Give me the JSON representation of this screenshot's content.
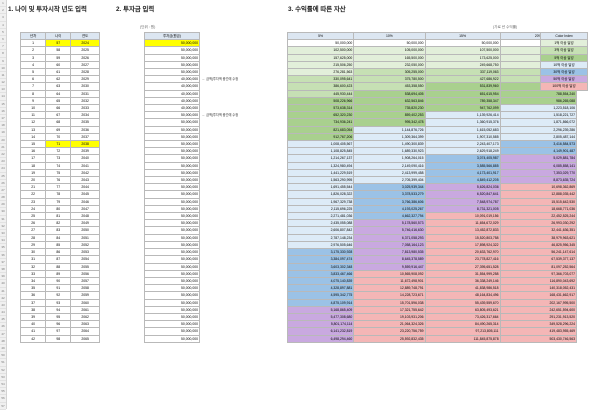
{
  "titles": {
    "t1": "1. 나이 및 투자시작 년도 입력",
    "t2": "2. 투자금 입력",
    "t3": "3. 수익률에 따른 자산",
    "unit": "(단위 : 원)",
    "rate_note": "(가로 년 수익률)"
  },
  "table1": {
    "headers": [
      "년차",
      "나이",
      "연도"
    ],
    "rows": [
      [
        1,
        57,
        2024
      ],
      [
        2,
        58,
        2025
      ],
      [
        3,
        59,
        2026
      ],
      [
        4,
        60,
        2027
      ],
      [
        5,
        61,
        2028
      ],
      [
        6,
        62,
        2029
      ],
      [
        7,
        63,
        2030
      ],
      [
        8,
        64,
        2031
      ],
      [
        9,
        65,
        2032
      ],
      [
        10,
        66,
        2033
      ],
      [
        11,
        67,
        2034
      ],
      [
        12,
        68,
        2035
      ],
      [
        13,
        69,
        2036
      ],
      [
        14,
        70,
        2037
      ],
      [
        15,
        71,
        2038
      ],
      [
        16,
        72,
        2039
      ],
      [
        17,
        73,
        2040
      ],
      [
        18,
        74,
        2041
      ],
      [
        19,
        75,
        2042
      ],
      [
        20,
        76,
        2043
      ],
      [
        21,
        77,
        2044
      ],
      [
        22,
        78,
        2045
      ],
      [
        23,
        79,
        2046
      ],
      [
        24,
        80,
        2047
      ],
      [
        25,
        81,
        2048
      ],
      [
        26,
        82,
        2049
      ],
      [
        27,
        83,
        2050
      ],
      [
        28,
        84,
        2051
      ],
      [
        29,
        85,
        2052
      ],
      [
        30,
        86,
        2053
      ],
      [
        31,
        87,
        2054
      ],
      [
        32,
        88,
        2055
      ],
      [
        33,
        89,
        2056
      ],
      [
        34,
        90,
        2057
      ],
      [
        35,
        91,
        2058
      ],
      [
        36,
        92,
        2059
      ],
      [
        37,
        93,
        2060
      ],
      [
        38,
        94,
        2061
      ],
      [
        39,
        95,
        2062
      ],
      [
        40,
        96,
        2063
      ],
      [
        41,
        97,
        2064
      ],
      [
        42,
        98,
        2065
      ]
    ]
  },
  "table2": {
    "header": "투자금(원금)",
    "rows": [
      "50,000,000",
      "50,000,000",
      "50,000,000",
      "50,000,000",
      "50,000,000",
      "40,000,000",
      "40,000,000",
      "40,000,000",
      "40,000,000",
      "40,000,000",
      "50,000,000",
      "50,000,000",
      "50,000,000",
      "50,000,000",
      "50,000,000",
      "50,000,000",
      "50,000,000",
      "50,000,000",
      "50,000,000",
      "50,000,000",
      "50,000,000",
      "50,000,000",
      "50,000,000",
      "50,000,000",
      "50,000,000",
      "50,000,000",
      "50,000,000",
      "50,000,000",
      "50,000,000",
      "50,000,000",
      "50,000,000",
      "50,000,000",
      "50,000,000",
      "50,000,000",
      "50,000,000",
      "50,000,000",
      "50,000,000",
      "50,000,000",
      "50,000,000",
      "50,000,000",
      "50,000,000",
      "50,000,000"
    ],
    "notes": [
      {
        "row": 5,
        "text": "← 금액(투자액 중간에 수정"
      },
      {
        "row": 10,
        "text": "← 금액(투자액 중간에 수정"
      }
    ]
  },
  "table3": {
    "headers": [
      "5%",
      "10%",
      "15%",
      "20%"
    ],
    "rows": [
      [
        "50,000,000",
        "50,000,000",
        "50,000,000",
        "50,000,000"
      ],
      [
        "102,500,000",
        "105,000,000",
        "107,500,000",
        "110,000,000"
      ],
      [
        "157,625,000",
        "165,500,000",
        "173,625,000",
        "182,000,000"
      ],
      [
        "215,506,250",
        "232,050,000",
        "249,668,750",
        "268,400,000"
      ],
      [
        "276,281,563",
        "305,255,000",
        "337,119,063",
        "372,080,000"
      ],
      [
        "330,095,641",
        "375,780,500",
        "427,686,922",
        "486,496,000"
      ],
      [
        "386,600,423",
        "453,358,550",
        "531,839,960",
        "623,795,200"
      ],
      [
        "445,930,444",
        "538,694,405",
        "651,615,954",
        "788,554,240"
      ],
      [
        "508,226,966",
        "632,563,846",
        "789,358,347",
        "986,265,088"
      ],
      [
        "573,638,314",
        "735,820,230",
        "947,762,099",
        "1,223,518,106"
      ],
      [
        "652,320,230",
        "859,402,253",
        "1,139,926,414",
        "1,518,221,727"
      ],
      [
        "734,936,241",
        "995,342,478",
        "1,360,915,376",
        "1,871,866,072"
      ],
      [
        "821,683,054",
        "1,144,876,726",
        "1,615,052,683",
        "2,296,239,286"
      ],
      [
        "912,767,206",
        "1,309,364,399",
        "1,907,310,585",
        "2,805,487,144"
      ],
      [
        "1,008,405,567",
        "1,490,300,839",
        "2,243,407,173",
        "3,416,584,573"
      ],
      [
        "1,108,825,845",
        "1,689,330,923",
        "2,629,918,249",
        "4,149,901,487"
      ],
      [
        "1,214,267,137",
        "1,908,264,015",
        "3,074,405,987",
        "5,029,881,784"
      ],
      [
        "1,324,980,494",
        "2,149,090,416",
        "3,585,566,885",
        "6,085,858,141"
      ],
      [
        "1,441,229,519",
        "2,413,999,458",
        "4,173,401,917",
        "7,353,029,770"
      ],
      [
        "1,563,290,995",
        "2,705,399,404",
        "4,849,412,205",
        "8,873,635,724"
      ],
      [
        "1,691,455,544",
        "3,025,939,344",
        "5,626,824,036",
        "10,698,362,869"
      ],
      [
        "1,826,028,322",
        "3,378,533,279",
        "6,520,847,641",
        "12,888,035,442"
      ],
      [
        "1,967,329,738",
        "3,766,386,606",
        "7,548,974,787",
        "15,515,642,530"
      ],
      [
        "2,115,696,225",
        "4,193,025,267",
        "8,731,321,005",
        "18,668,771,036"
      ],
      [
        "2,271,481,036",
        "4,662,327,794",
        "10,091,019,156",
        "22,452,525,244"
      ],
      [
        "2,435,055,088",
        "5,178,560,573",
        "11,654,672,029",
        "26,993,030,292"
      ],
      [
        "2,606,807,842",
        "5,746,416,630",
        "13,452,872,833",
        "32,441,636,351"
      ],
      [
        "2,787,148,234",
        "6,371,058,293",
        "15,520,803,758",
        "38,979,963,621"
      ],
      [
        "2,976,505,646",
        "7,058,164,123",
        "17,898,924,322",
        "46,825,956,345"
      ],
      [
        "3,175,330,928",
        "7,813,980,535",
        "20,633,762,970",
        "56,241,147,614"
      ],
      [
        "3,384,097,474",
        "8,645,378,589",
        "23,778,827,416",
        "67,539,377,137"
      ],
      [
        "3,603,302,348",
        "9,559,916,447",
        "27,395,651,528",
        "81,097,252,564"
      ],
      [
        "3,833,467,466",
        "10,565,908,092",
        "31,554,999,258",
        "97,366,703,077"
      ],
      [
        "4,075,140,839",
        "11,672,498,901",
        "36,338,249,146",
        "116,890,043,692"
      ],
      [
        "4,328,897,881",
        "12,889,748,791",
        "41,838,986,518",
        "140,318,052,431"
      ],
      [
        "4,595,342,775",
        "14,228,723,671",
        "48,164,834,496",
        "168,431,662,917"
      ],
      [
        "4,875,109,914",
        "15,701,596,038",
        "55,439,559,670",
        "202,167,995,500"
      ],
      [
        "5,168,865,409",
        "17,321,755,642",
        "63,805,493,621",
        "242,651,594,600"
      ],
      [
        "5,477,308,680",
        "19,103,931,206",
        "73,426,317,664",
        "291,231,913,520"
      ],
      [
        "5,801,174,114",
        "21,064,324,326",
        "84,490,265,314",
        "349,528,296,224"
      ],
      [
        "6,141,232,819",
        "23,220,756,759",
        "97,213,805,111",
        "419,483,955,469"
      ],
      [
        "6,498,294,460",
        "25,592,832,435",
        "111,845,875,878",
        "503,430,746,563"
      ]
    ]
  },
  "color_index": {
    "header": "Color Index",
    "items": [
      {
        "label": "1억 이상 달성",
        "color": "#e2efda"
      },
      {
        "label": "3억 이상 달성",
        "color": "#c6e0b4"
      },
      {
        "label": "5억 이상 달성",
        "color": "#a9d08e"
      },
      {
        "label": "10억 이상 달성",
        "color": "#ddebf7"
      },
      {
        "label": "30억 이상 달성",
        "color": "#9bc2e6"
      },
      {
        "label": "50억 이상 달성",
        "color": "#c9a9e0"
      },
      {
        "label": "100억 이상 달성",
        "color": "#f4b6b6"
      }
    ]
  }
}
